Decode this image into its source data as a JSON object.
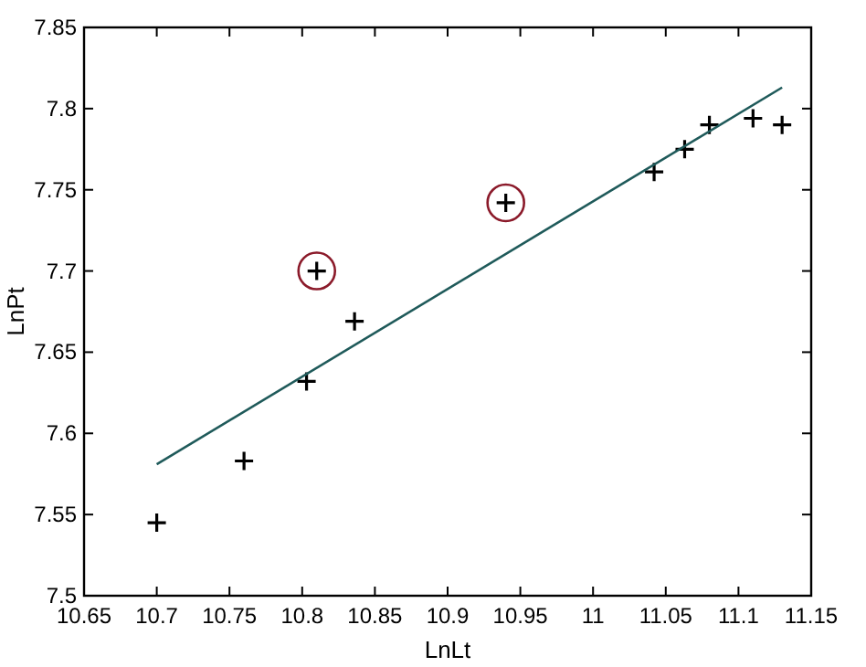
{
  "chart_data": {
    "type": "scatter",
    "xlabel": "LnLt",
    "ylabel": "LnPt",
    "marker": "cross",
    "xlim": [
      10.65,
      11.15
    ],
    "xticks": [
      10.65,
      10.7,
      10.75,
      10.8,
      10.85,
      10.9,
      10.95,
      11,
      11.05,
      11.1,
      11.15
    ],
    "ylim": [
      7.5,
      7.85
    ],
    "yticks": [
      7.5,
      7.55,
      7.6,
      7.65,
      7.7,
      7.75,
      7.8,
      7.85
    ],
    "grid": false,
    "series": [
      {
        "color": "#000000",
        "x": [
          10.7,
          10.76,
          10.803,
          10.81,
          10.836,
          10.94,
          11.042,
          11.063,
          11.08,
          11.11,
          11.13
        ],
        "values": [
          7.545,
          7.583,
          7.632,
          7.7,
          7.669,
          7.742,
          7.761,
          7.775,
          7.79,
          7.794,
          7.79
        ]
      },
      {
        "type": "line",
        "marker": "none",
        "line_style": "solid",
        "color": "#1f5a5a",
        "x": [
          10.7,
          11.13
        ],
        "values": [
          7.581,
          7.813
        ]
      },
      {
        "type": "scatter",
        "marker": "circle",
        "color": "#8b1a2a",
        "x": [
          10.81,
          10.94
        ],
        "values": [
          7.7,
          7.742
        ]
      }
    ]
  }
}
